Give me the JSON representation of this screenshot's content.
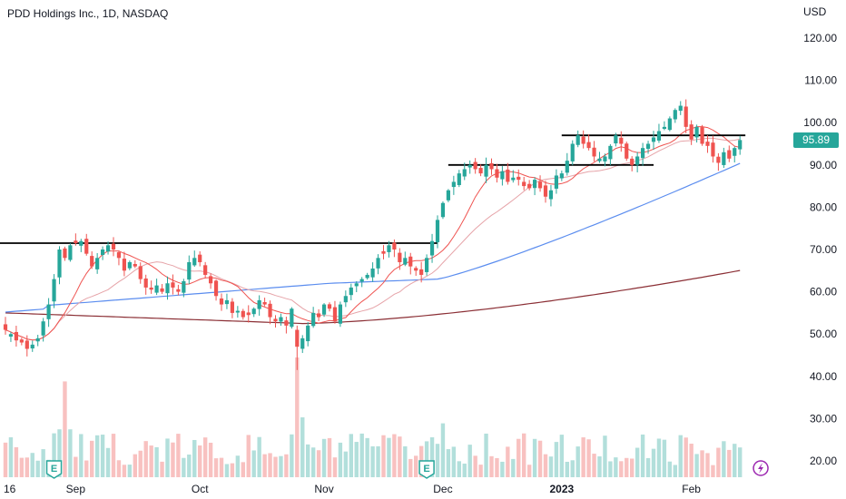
{
  "header": {
    "symbol_title": "PDD Holdings Inc., 1D, NASDAQ",
    "currency": "USD",
    "last_price": "95.89"
  },
  "events": [
    {
      "label": "E",
      "date_index": 9,
      "kind": "earnings"
    },
    {
      "label": "E",
      "date_index": 78,
      "kind": "earnings"
    },
    {
      "kind": "flash",
      "date_index": 139
    }
  ],
  "colors": {
    "up": "#26a69a",
    "down": "#ef5350",
    "vol_up": "#b2dfdb",
    "vol_down": "#f8c1c0",
    "ma10": "#ef5350",
    "ma20": "#e6a3a8",
    "ma50": "#5b8def",
    "ma200": "#8b2f35",
    "level": "#000000",
    "badge": "#26a69a",
    "flash": "#9c27b0"
  },
  "chart_data": {
    "type": "candlestick",
    "title": "PDD Holdings Inc., 1D, NASDAQ",
    "ylabel": "USD",
    "ylim": [
      17,
      125
    ],
    "y_ticks": [
      "20.00",
      "30.00",
      "40.00",
      "50.00",
      "60.00",
      "70.00",
      "80.00",
      "90.00",
      "100.00",
      "110.00",
      "120.00"
    ],
    "x_ticks": [
      {
        "label": "16",
        "index": 0,
        "bold": false
      },
      {
        "label": "Sep",
        "index": 13,
        "bold": false
      },
      {
        "label": "Oct",
        "index": 36,
        "bold": false
      },
      {
        "label": "Nov",
        "index": 59,
        "bold": false
      },
      {
        "label": "Dec",
        "index": 81,
        "bold": false
      },
      {
        "label": "2023",
        "index": 103,
        "bold": true
      },
      {
        "label": "Feb",
        "index": 127,
        "bold": false
      }
    ],
    "close": [
      51,
      50,
      48.5,
      48,
      46.5,
      47.5,
      49,
      53,
      57,
      63,
      70,
      68,
      71,
      71.5,
      72,
      69,
      66,
      68,
      70,
      71,
      70,
      68,
      65,
      67,
      66,
      63,
      61,
      60.5,
      61.5,
      60,
      62,
      61,
      60,
      62.5,
      67,
      68,
      67,
      64,
      62,
      59,
      57,
      58,
      55,
      55.5,
      54,
      54.5,
      56,
      58,
      57,
      54,
      53,
      54,
      52,
      56,
      47,
      49,
      52,
      55,
      54,
      57,
      56,
      53,
      57,
      59,
      61,
      62,
      63,
      64,
      65.5,
      68,
      69,
      71,
      70,
      67,
      68,
      66,
      65,
      64,
      68,
      72,
      77,
      81,
      84,
      86,
      88,
      89,
      90,
      89,
      88,
      90,
      89,
      87,
      88.5,
      86,
      87,
      86.5,
      85,
      84.5,
      86.5,
      84.5,
      82.5,
      84,
      87.5,
      88,
      91,
      95,
      97,
      95,
      94,
      92,
      91.5,
      92,
      94.5,
      97,
      95,
      91.5,
      90,
      92,
      94,
      95,
      96.5,
      98,
      99,
      101,
      103,
      104,
      99,
      96,
      99,
      95,
      94.5,
      92,
      90.5,
      93,
      91.5,
      94,
      95.89
    ],
    "volume_note": "Daily volume histogram shown at bottom of chart",
    "levels": [
      {
        "value": 71.5,
        "from_index": 0,
        "to_index": 80
      },
      {
        "value": 90,
        "from_index": 83,
        "to_index": 120
      },
      {
        "value": 97,
        "from_index": 104,
        "to_index": 137
      }
    ],
    "series": [
      {
        "type": "ma",
        "period": 10
      },
      {
        "type": "ma",
        "period": 20
      },
      {
        "type": "ma",
        "period": 50
      },
      {
        "type": "ma",
        "period": 200
      }
    ],
    "grid": false
  }
}
